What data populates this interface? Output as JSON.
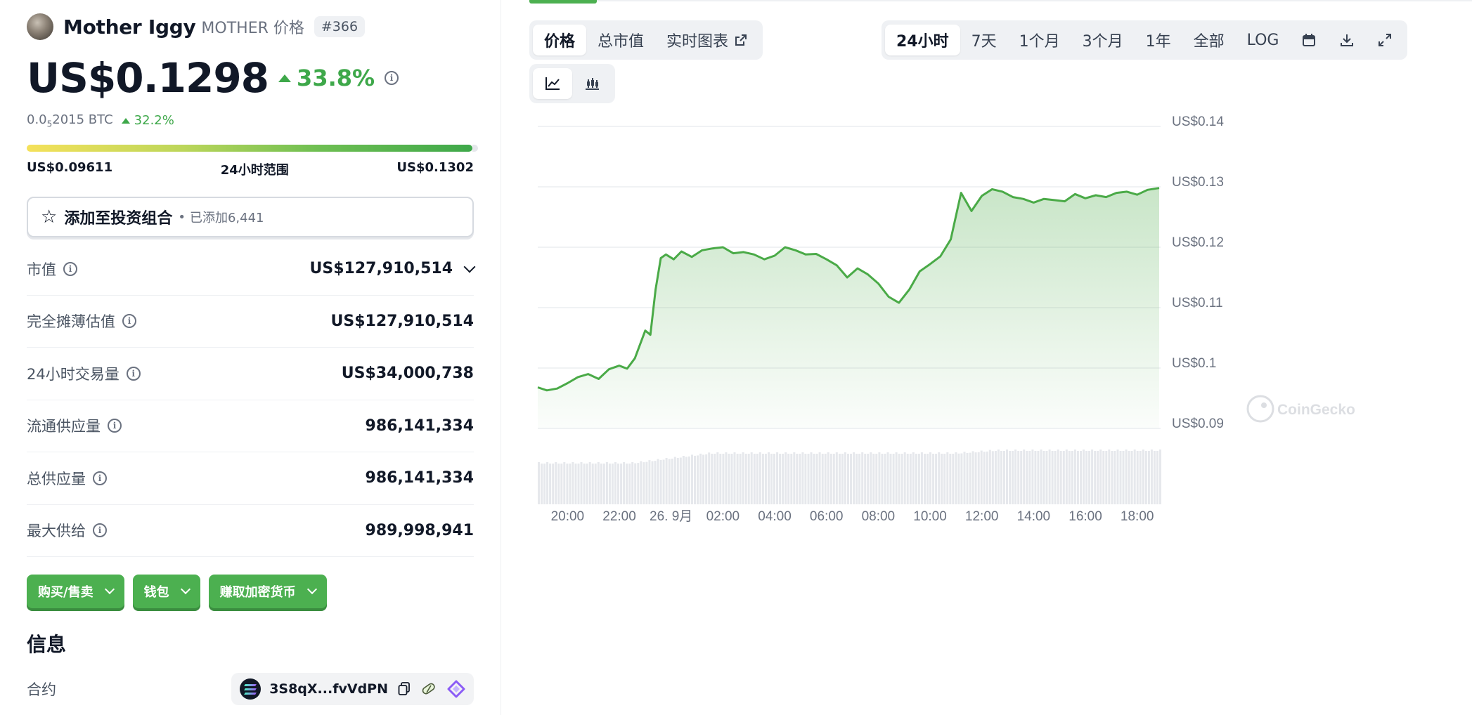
{
  "coin": {
    "name": "Mother Iggy",
    "subtitle": "MOTHER 价格",
    "rank": "#366",
    "price": "US$0.1298",
    "change_24h": "33.8%",
    "btc_price_prefix": "0.0",
    "btc_price_sub": "5",
    "btc_price_suffix": "2015 BTC",
    "btc_change": "32.2%"
  },
  "range": {
    "low": "US$0.09611",
    "label": "24小时范围",
    "high": "US$0.1302"
  },
  "portfolio": {
    "label": "添加至投资组合",
    "dot": "•",
    "added": "已添加6,441"
  },
  "stats": [
    {
      "label": "市值",
      "value": "US$127,910,514",
      "expandable": true
    },
    {
      "label": "完全摊薄估值",
      "value": "US$127,910,514"
    },
    {
      "label": "24小时交易量",
      "value": "US$34,000,738"
    },
    {
      "label": "流通供应量",
      "value": "986,141,334"
    },
    {
      "label": "总供应量",
      "value": "986,141,334"
    },
    {
      "label": "最大供给",
      "value": "989,998,941"
    }
  ],
  "actions": {
    "buy_sell": "购买/售卖",
    "wallet": "钱包",
    "earn": "赚取加密货币"
  },
  "info": {
    "title": "信息",
    "contract_label": "合约",
    "contract_address": "3S8qX...fvVdPN"
  },
  "chart_tabs": {
    "price": "价格",
    "market_cap": "总市值",
    "live_chart": "实时图表"
  },
  "time_tabs": [
    "24小时",
    "7天",
    "1个月",
    "3个月",
    "1年",
    "全部",
    "LOG"
  ],
  "time_tab_active": "24小时",
  "icons": {
    "line_chart": "line-chart-icon",
    "candlestick": "candlestick-icon",
    "calendar": "calendar-icon",
    "download": "download-icon",
    "fullscreen": "expand-icon"
  },
  "watermark": "CoinGecko",
  "colors": {
    "up": "#3ea84a",
    "line": "#4aaa47",
    "button": "#4cb050",
    "volume": "#e4e6ea"
  },
  "chart_data": {
    "type": "area",
    "title": "",
    "xlabel": "",
    "ylabel": "",
    "x_ticks": [
      "20:00",
      "22:00",
      "26. 9月",
      "02:00",
      "04:00",
      "06:00",
      "08:00",
      "10:00",
      "12:00",
      "14:00",
      "16:00",
      "18:00"
    ],
    "y_ticks": [
      "US$0.09",
      "US$0.1",
      "US$0.11",
      "US$0.12",
      "US$0.13",
      "US$0.14"
    ],
    "ylim": [
      0.09,
      0.14
    ],
    "x_unit": "hours",
    "xlim": [
      18.85,
      42.85
    ],
    "grid": true,
    "series": [
      {
        "x": [
          18.85,
          19.2,
          19.6,
          20.0,
          20.4,
          20.8,
          21.2,
          21.6,
          22.0,
          22.3,
          22.6,
          23.0,
          23.2,
          23.4,
          23.6,
          23.8,
          24.1,
          24.4,
          24.8,
          25.2,
          25.6,
          26.0,
          26.4,
          26.8,
          27.2,
          27.6,
          28.0,
          28.4,
          28.8,
          29.2,
          29.6,
          30.0,
          30.4,
          30.8,
          31.2,
          31.6,
          32.0,
          32.4,
          32.8,
          33.2,
          33.6,
          34.0,
          34.4,
          34.8,
          35.2,
          35.6,
          36.0,
          36.4,
          36.8,
          37.2,
          37.6,
          38.0,
          38.4,
          38.8,
          39.2,
          39.6,
          40.0,
          40.4,
          40.8,
          41.2,
          41.6,
          42.0,
          42.4,
          42.85
        ],
        "values": [
          0.0968,
          0.0963,
          0.0966,
          0.0975,
          0.0985,
          0.099,
          0.0982,
          0.0998,
          0.1004,
          0.0999,
          0.1016,
          0.1062,
          0.1055,
          0.113,
          0.1182,
          0.1188,
          0.118,
          0.1193,
          0.1184,
          0.1195,
          0.1198,
          0.12,
          0.119,
          0.1192,
          0.1188,
          0.118,
          0.1186,
          0.12,
          0.1195,
          0.1188,
          0.1189,
          0.118,
          0.117,
          0.115,
          0.1165,
          0.1155,
          0.114,
          0.1118,
          0.1108,
          0.113,
          0.116,
          0.1172,
          0.1185,
          0.1213,
          0.129,
          0.126,
          0.1285,
          0.1296,
          0.1292,
          0.1283,
          0.128,
          0.1274,
          0.128,
          0.1278,
          0.1276,
          0.1288,
          0.1281,
          0.1286,
          0.1283,
          0.129,
          0.1292,
          0.1287,
          0.1295,
          0.1298
        ]
      }
    ],
    "volume": true
  }
}
